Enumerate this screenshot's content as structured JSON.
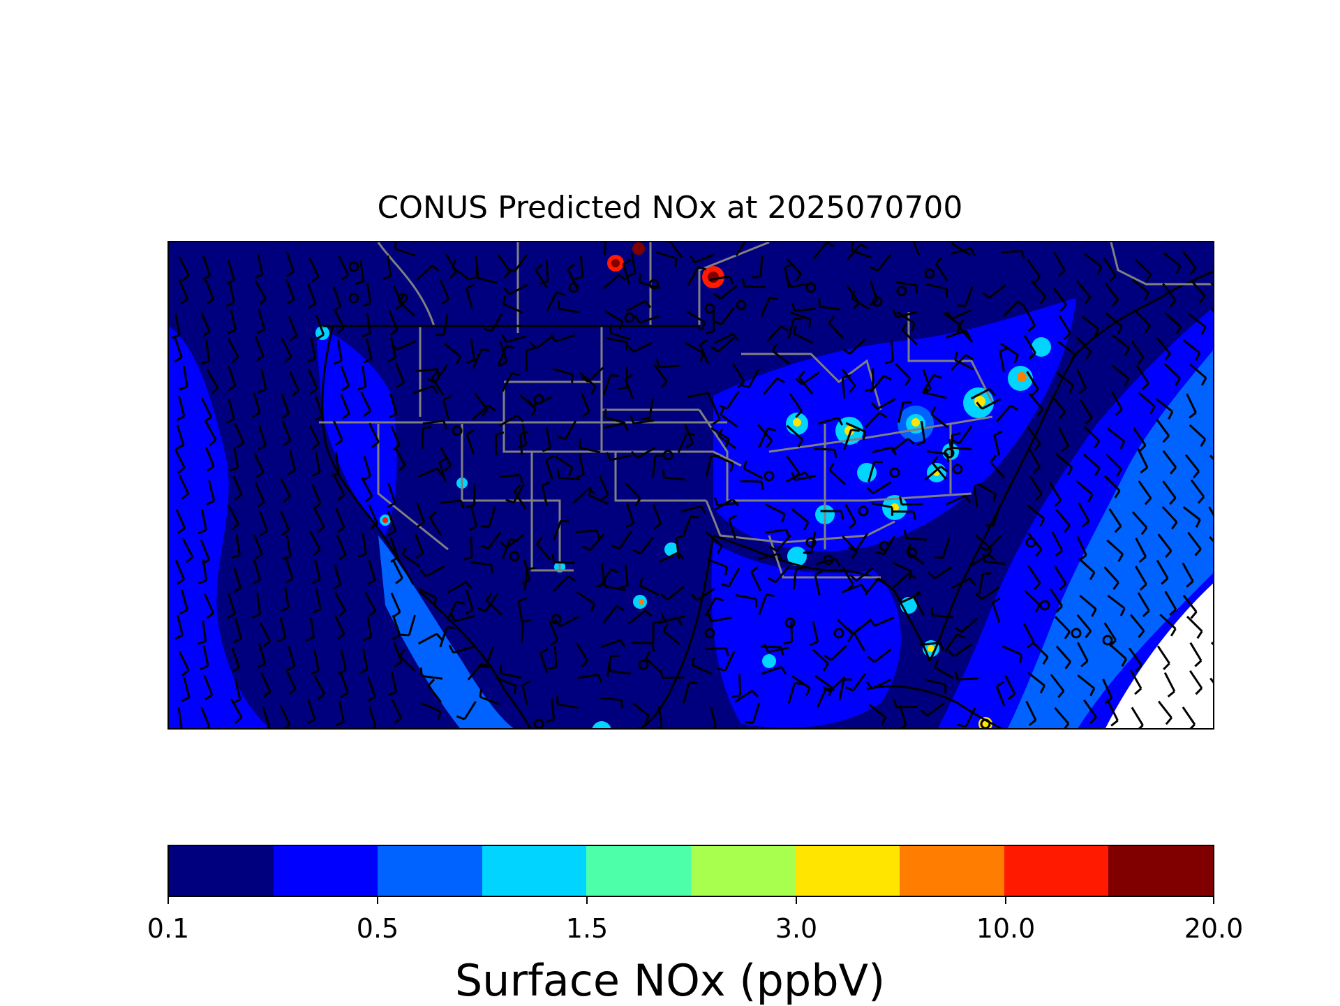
{
  "title": "CONUS Predicted NOx at 2025070700",
  "colorbar": {
    "label": "Surface NOx (ppbV)",
    "ticks": [
      "0.1",
      "0.5",
      "1.5",
      "3.0",
      "10.0",
      "20.0"
    ],
    "colors": [
      "#00007f",
      "#0000ff",
      "#0063ff",
      "#00d4ff",
      "#4dffa9",
      "#a9ff4d",
      "#ffe500",
      "#ff7d00",
      "#ff1a00",
      "#800000"
    ]
  },
  "map": {
    "background_color": "#00007f",
    "wind_barbs": true,
    "state_borders_color": "#808080",
    "coastline_color": "#000000"
  }
}
